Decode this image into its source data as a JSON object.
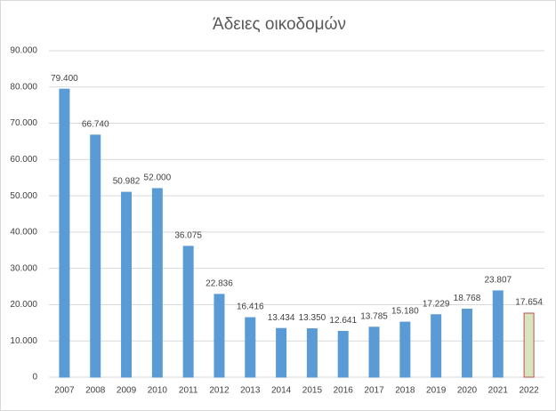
{
  "chart_data": {
    "type": "bar",
    "title": "Άδειες οικοδομών",
    "categories": [
      "2007",
      "2008",
      "2009",
      "2010",
      "2011",
      "2012",
      "2013",
      "2014",
      "2015",
      "2016",
      "2017",
      "2018",
      "2019",
      "2020",
      "2021",
      "2022"
    ],
    "values": [
      79400,
      66740,
      50982,
      52000,
      36075,
      22836,
      16416,
      13434,
      13350,
      12641,
      13785,
      15180,
      17229,
      18768,
      23807,
      17654
    ],
    "value_labels": [
      "79.400",
      "66.740",
      "50.982",
      "52.000",
      "36.075",
      "22.836",
      "16.416",
      "13.434",
      "13.350",
      "12.641",
      "13.785",
      "15.180",
      "17.229",
      "18.768",
      "23.807",
      "17.654"
    ],
    "colors": [
      "#5b9bd5",
      "#5b9bd5",
      "#5b9bd5",
      "#5b9bd5",
      "#5b9bd5",
      "#5b9bd5",
      "#5b9bd5",
      "#5b9bd5",
      "#5b9bd5",
      "#5b9bd5",
      "#5b9bd5",
      "#5b9bd5",
      "#5b9bd5",
      "#5b9bd5",
      "#5b9bd5",
      "#d7e4bd"
    ],
    "edge_colors": [
      "#5b9bd5",
      "#5b9bd5",
      "#5b9bd5",
      "#5b9bd5",
      "#5b9bd5",
      "#5b9bd5",
      "#5b9bd5",
      "#5b9bd5",
      "#5b9bd5",
      "#5b9bd5",
      "#5b9bd5",
      "#5b9bd5",
      "#5b9bd5",
      "#5b9bd5",
      "#5b9bd5",
      "#c0504d"
    ],
    "ylim": [
      0,
      90000
    ],
    "yticks": [
      0,
      {
        "value": 10000,
        "label": "10.000"
      },
      {
        "value": 20000,
        "label": "20.000"
      },
      {
        "value": 30000,
        "label": "30.000"
      },
      {
        "value": 40000,
        "label": "40.000"
      },
      {
        "value": 50000,
        "label": "50.000"
      },
      {
        "value": 60000,
        "label": "60.000"
      },
      {
        "value": 70000,
        "label": "70.000"
      },
      {
        "value": 80000,
        "label": "80.000"
      },
      {
        "value": 90000,
        "label": "90.000"
      }
    ],
    "grid": true
  }
}
